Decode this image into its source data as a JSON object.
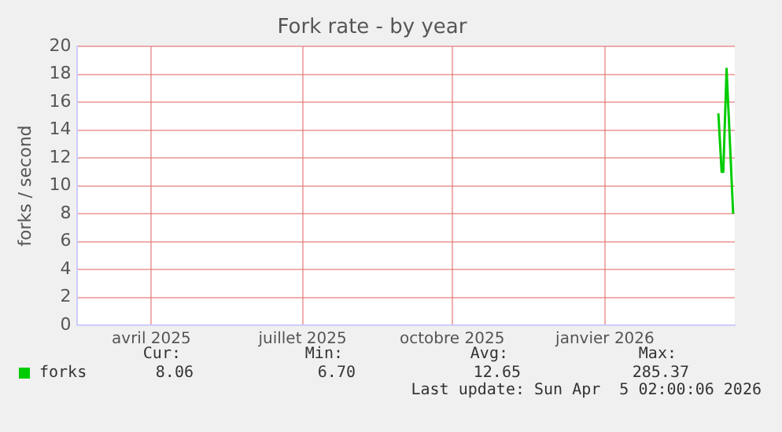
{
  "chart_data": {
    "type": "line",
    "title": "Fork rate - by year",
    "ylabel": "forks / second",
    "x": [
      "2026-03-26",
      "2026-03-28",
      "2026-03-29",
      "2026-03-31",
      "2026-04-04"
    ],
    "series": [
      {
        "name": "forks",
        "color": "#00cc00",
        "values": [
          15.2,
          11.0,
          11.0,
          18.4,
          8.0
        ]
      }
    ],
    "xlim": [
      "2025-03-01",
      "2026-04-05"
    ],
    "xticks": [
      {
        "value": "2025-04-15",
        "label": "avril 2025"
      },
      {
        "value": "2025-07-16",
        "label": "juillet 2025"
      },
      {
        "value": "2025-10-15",
        "label": "octobre 2025"
      },
      {
        "value": "2026-01-16",
        "label": "janvier 2026"
      }
    ],
    "ylim": [
      0,
      20
    ],
    "yticks": [
      0,
      2,
      4,
      6,
      8,
      10,
      12,
      14,
      16,
      18,
      20
    ],
    "grid": true,
    "legend": "bottom left",
    "marker": "none",
    "line_style": "solid",
    "annotations": [
      "Cur:",
      "Min:",
      "Avg:",
      "Max:",
      "8.06",
      "6.70",
      "12.65",
      "285.37",
      "Last update: Sun Apr  5 02:00:06 2026"
    ]
  }
}
